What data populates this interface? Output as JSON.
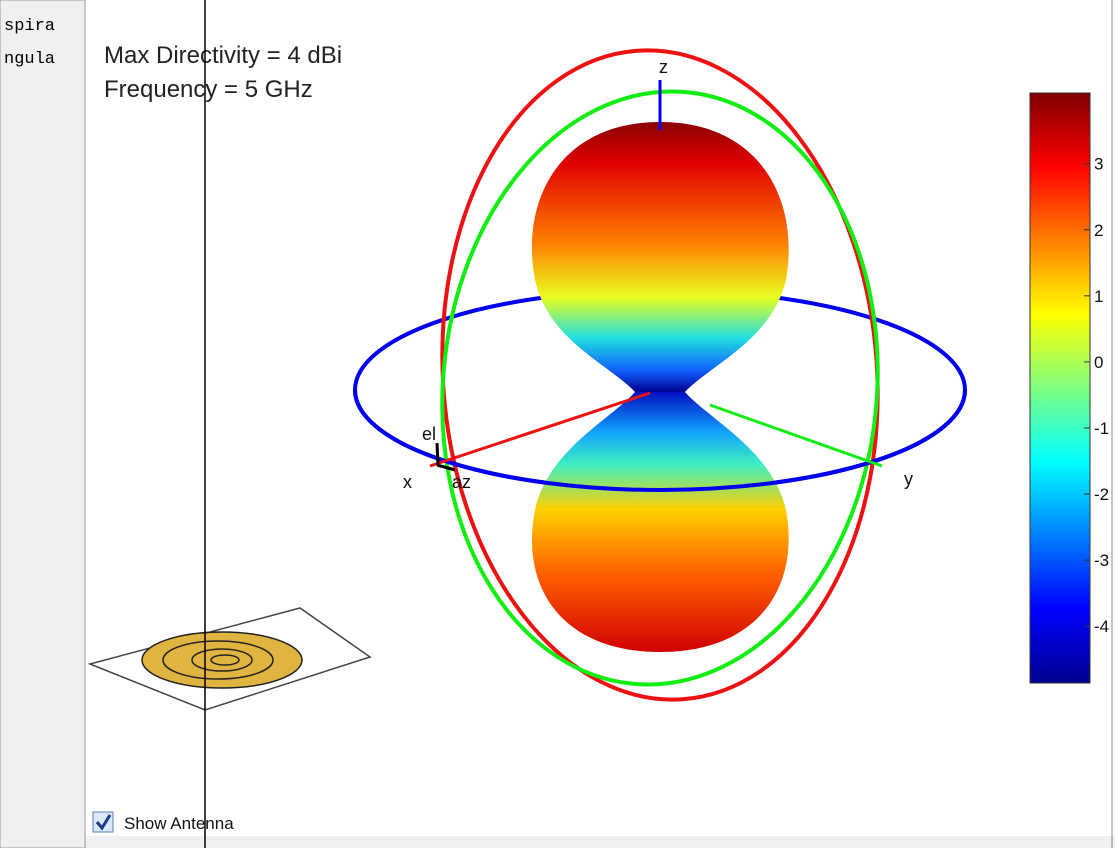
{
  "sidebar": {
    "lines": [
      "spira",
      "ngula"
    ]
  },
  "plot": {
    "title_lines": [
      "Max Directivity = 4 dBi",
      "Frequency = 5 GHz"
    ],
    "axis_labels": {
      "x": "x",
      "y": "y",
      "z": "z",
      "az": "az",
      "el": "el"
    }
  },
  "colorbar": {
    "lim": [
      -4.86,
      4.07
    ],
    "ticks": [
      3,
      2,
      1,
      0,
      -1,
      -2,
      -3,
      -4
    ]
  },
  "controls": {
    "show_antenna": {
      "label": "Show Antenna",
      "checked": true
    }
  }
}
